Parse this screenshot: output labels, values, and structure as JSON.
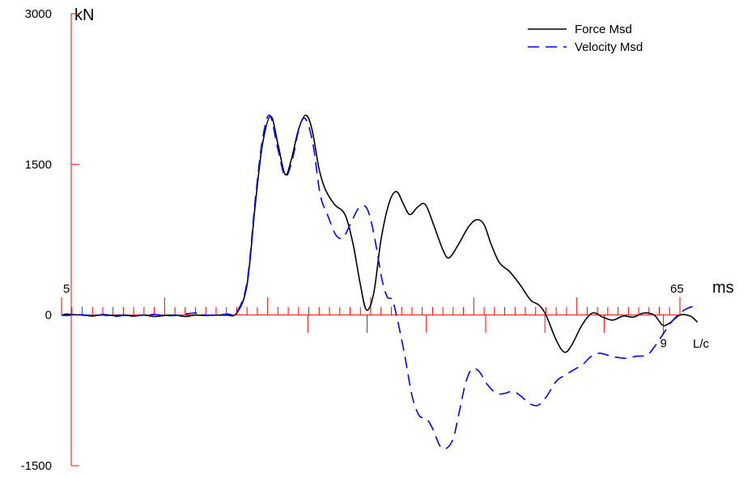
{
  "chart_data": {
    "type": "line",
    "y_unit": "kN",
    "x_unit": "ms",
    "lc_label": "L/c",
    "ylim": [
      -1500,
      3000
    ],
    "xlim": [
      5,
      65
    ],
    "y_ticks": [
      {
        "value": 3000,
        "label": "3000"
      },
      {
        "value": 1500,
        "label": "1500"
      },
      {
        "value": 0,
        "label": "0"
      },
      {
        "value": -1500,
        "label": "-1500"
      }
    ],
    "x_end_labels": {
      "start": "5",
      "end": "65"
    },
    "lc_marks": [
      3,
      4,
      5,
      6,
      7,
      8,
      9
    ],
    "lc_labels": [
      {
        "value": 9,
        "label": "9"
      }
    ],
    "colors": {
      "axis": "#ff0000",
      "force": "#000000",
      "velocity": "#0000ff"
    },
    "series": [
      {
        "name": "Force Msd",
        "style": "solid",
        "points": [
          [
            5.0,
            0
          ],
          [
            5.5,
            10
          ],
          [
            6,
            5
          ],
          [
            7,
            0
          ],
          [
            8,
            -10
          ],
          [
            9,
            5
          ],
          [
            10,
            -5
          ],
          [
            11,
            0
          ],
          [
            12,
            -10
          ],
          [
            13,
            0
          ],
          [
            14,
            -15
          ],
          [
            15,
            -5
          ],
          [
            16,
            0
          ],
          [
            17,
            -15
          ],
          [
            18,
            0
          ],
          [
            19,
            -5
          ],
          [
            20,
            0
          ],
          [
            21,
            0
          ],
          [
            22,
            20
          ],
          [
            23,
            300
          ],
          [
            23.8,
            1100
          ],
          [
            24.5,
            1700
          ],
          [
            25.3,
            1980
          ],
          [
            26,
            1700
          ],
          [
            26.7,
            1400
          ],
          [
            27.3,
            1550
          ],
          [
            28,
            1850
          ],
          [
            28.7,
            1990
          ],
          [
            29.3,
            1850
          ],
          [
            30,
            1450
          ],
          [
            30.6,
            1250
          ],
          [
            31.5,
            1100
          ],
          [
            32.5,
            1000
          ],
          [
            33.3,
            700
          ],
          [
            34,
            300
          ],
          [
            34.6,
            50
          ],
          [
            35.3,
            220
          ],
          [
            36,
            750
          ],
          [
            36.8,
            1120
          ],
          [
            37.5,
            1230
          ],
          [
            38.2,
            1100
          ],
          [
            38.8,
            1000
          ],
          [
            39.6,
            1080
          ],
          [
            40.3,
            1100
          ],
          [
            41.1,
            900
          ],
          [
            42,
            650
          ],
          [
            42.6,
            570
          ],
          [
            43.5,
            700
          ],
          [
            44.5,
            880
          ],
          [
            45.3,
            950
          ],
          [
            46,
            900
          ],
          [
            46.7,
            700
          ],
          [
            47.5,
            520
          ],
          [
            48.5,
            430
          ],
          [
            49.5,
            300
          ],
          [
            50.5,
            150
          ],
          [
            51.3,
            100
          ],
          [
            52,
            0
          ],
          [
            53,
            -250
          ],
          [
            53.8,
            -370
          ],
          [
            54.5,
            -300
          ],
          [
            55.5,
            -100
          ],
          [
            56.5,
            20
          ],
          [
            57.5,
            -20
          ],
          [
            58.5,
            -50
          ],
          [
            59.5,
            -10
          ],
          [
            60.5,
            -20
          ],
          [
            61.5,
            20
          ],
          [
            62.5,
            0
          ],
          [
            63.3,
            -100
          ],
          [
            64,
            -80
          ],
          [
            65,
            0
          ],
          [
            66,
            -10
          ],
          [
            66.7,
            -70
          ]
        ]
      },
      {
        "name": "Velocity Msd",
        "style": "dashed",
        "points": [
          [
            5.0,
            0
          ],
          [
            5.5,
            -5
          ],
          [
            6.5,
            5
          ],
          [
            8,
            -5
          ],
          [
            9,
            0
          ],
          [
            10,
            -15
          ],
          [
            11,
            -5
          ],
          [
            12,
            -10
          ],
          [
            13,
            0
          ],
          [
            14,
            5
          ],
          [
            15,
            -5
          ],
          [
            16,
            -5
          ],
          [
            17,
            10
          ],
          [
            18,
            20
          ],
          [
            19,
            0
          ],
          [
            20,
            0
          ],
          [
            21,
            10
          ],
          [
            22,
            30
          ],
          [
            23,
            330
          ],
          [
            23.8,
            1150
          ],
          [
            24.5,
            1750
          ],
          [
            25.2,
            1990
          ],
          [
            26,
            1650
          ],
          [
            26.7,
            1380
          ],
          [
            27.4,
            1550
          ],
          [
            28.1,
            1880
          ],
          [
            28.7,
            1950
          ],
          [
            29.4,
            1700
          ],
          [
            30.1,
            1200
          ],
          [
            30.8,
            1000
          ],
          [
            31.6,
            800
          ],
          [
            32.3,
            770
          ],
          [
            33,
            900
          ],
          [
            33.8,
            1060
          ],
          [
            34.5,
            1080
          ],
          [
            35,
            950
          ],
          [
            35.5,
            700
          ],
          [
            36.1,
            350
          ],
          [
            36.6,
            180
          ],
          [
            37.1,
            150
          ],
          [
            37.6,
            -50
          ],
          [
            38.3,
            -400
          ],
          [
            39,
            -800
          ],
          [
            39.7,
            -1000
          ],
          [
            40.4,
            -1030
          ],
          [
            41,
            -1130
          ],
          [
            41.7,
            -1300
          ],
          [
            42.3,
            -1330
          ],
          [
            43,
            -1230
          ],
          [
            43.6,
            -960
          ],
          [
            44.2,
            -680
          ],
          [
            44.8,
            -540
          ],
          [
            45.5,
            -560
          ],
          [
            46.3,
            -690
          ],
          [
            47.2,
            -780
          ],
          [
            48,
            -780
          ],
          [
            48.8,
            -760
          ],
          [
            49.6,
            -810
          ],
          [
            50.4,
            -880
          ],
          [
            51.2,
            -900
          ],
          [
            52,
            -820
          ],
          [
            53,
            -660
          ],
          [
            54,
            -590
          ],
          [
            54.8,
            -540
          ],
          [
            55.6,
            -490
          ],
          [
            56.4,
            -410
          ],
          [
            57.2,
            -380
          ],
          [
            58,
            -400
          ],
          [
            58.8,
            -420
          ],
          [
            59.8,
            -430
          ],
          [
            60.8,
            -410
          ],
          [
            61.8,
            -400
          ],
          [
            62.5,
            -320
          ],
          [
            63.3,
            -200
          ],
          [
            64.1,
            -80
          ],
          [
            64.8,
            0
          ],
          [
            65.6,
            60
          ],
          [
            66.4,
            90
          ]
        ]
      }
    ]
  }
}
